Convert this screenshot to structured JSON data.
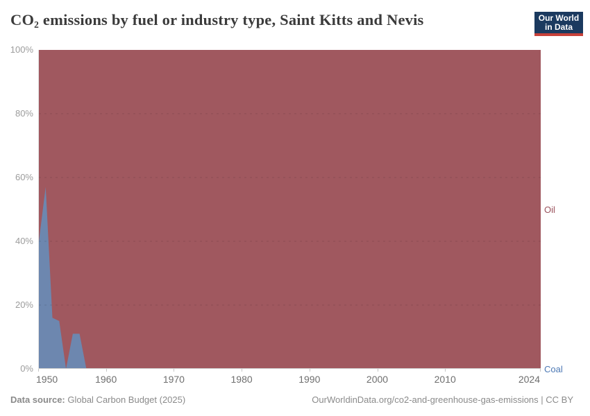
{
  "header": {
    "title_prefix": "CO",
    "title_subscript": "2",
    "title_rest": " emissions by fuel or industry type, Saint Kitts and Nevis",
    "logo_line1": "Our World",
    "logo_line2": "in Data"
  },
  "chart_data": {
    "type": "area",
    "stacking": "percent",
    "title": "CO2 emissions by fuel or industry type, Saint Kitts and Nevis",
    "x_domain": [
      1950,
      2024
    ],
    "y_domain_pct": [
      0,
      100
    ],
    "x_tick_labels": [
      1950,
      1960,
      1970,
      1980,
      1990,
      2000,
      2010,
      2024
    ],
    "y_tick_labels": [
      "0%",
      "20%",
      "40%",
      "60%",
      "80%",
      "100%"
    ],
    "grid": "dashed horizontal lines every 20%",
    "series": [
      {
        "name": "Oil",
        "color": "#a0585f",
        "label_color": "#9a525c",
        "share_rule": "100 minus Coal share (fills chart to 100%)"
      },
      {
        "name": "Coal",
        "color": "#6d87af",
        "label_color": "#4d79b5",
        "share_points": [
          [
            1950,
            40
          ],
          [
            1951,
            57
          ],
          [
            1952,
            16
          ],
          [
            1953,
            15
          ],
          [
            1954,
            0
          ],
          [
            1955,
            11
          ],
          [
            1956,
            11
          ],
          [
            1957,
            0
          ],
          [
            2024,
            0
          ]
        ]
      }
    ]
  },
  "footer": {
    "source_label": "Data source:",
    "source_value": " Global Carbon Budget (2025)",
    "license": "OurWorldinData.org/co2-and-greenhouse-gas-emissions | CC BY"
  }
}
